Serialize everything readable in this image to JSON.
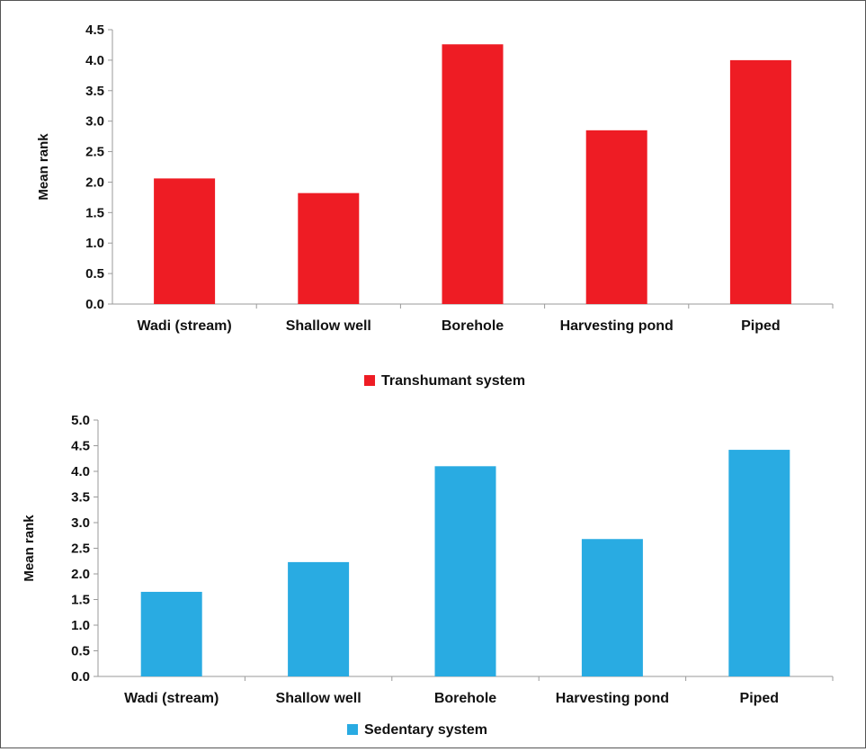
{
  "chart_data": [
    {
      "type": "bar",
      "title": "",
      "xlabel": "",
      "ylabel": "Mean rank",
      "ylim": [
        0,
        4.5
      ],
      "ticks": [
        "0.0",
        "0.5",
        "1.0",
        "1.5",
        "2.0",
        "2.5",
        "3.0",
        "3.5",
        "4.0",
        "4.5"
      ],
      "categories": [
        "Wadi (stream)",
        "Shallow well",
        "Borehole",
        "Harvesting pond",
        "Piped"
      ],
      "series": [
        {
          "name": "Transhumant system",
          "values": [
            2.06,
            1.82,
            4.26,
            2.85,
            4.0
          ],
          "color": "#ee1c24"
        }
      ],
      "legend": "bottom-center",
      "grid": false
    },
    {
      "type": "bar",
      "title": "",
      "xlabel": "",
      "ylabel": "Mean rank",
      "ylim": [
        0,
        5.0
      ],
      "ticks": [
        "0.0",
        "0.5",
        "1.0",
        "1.5",
        "2.0",
        "2.5",
        "3.0",
        "3.5",
        "4.0",
        "4.5",
        "5.0"
      ],
      "categories": [
        "Wadi (stream)",
        "Shallow well",
        "Borehole",
        "Harvesting pond",
        "Piped"
      ],
      "series": [
        {
          "name": "Sedentary system",
          "values": [
            1.65,
            2.23,
            4.1,
            2.68,
            4.42
          ],
          "color": "#29abe2"
        }
      ],
      "legend": "bottom-center",
      "grid": false
    }
  ]
}
